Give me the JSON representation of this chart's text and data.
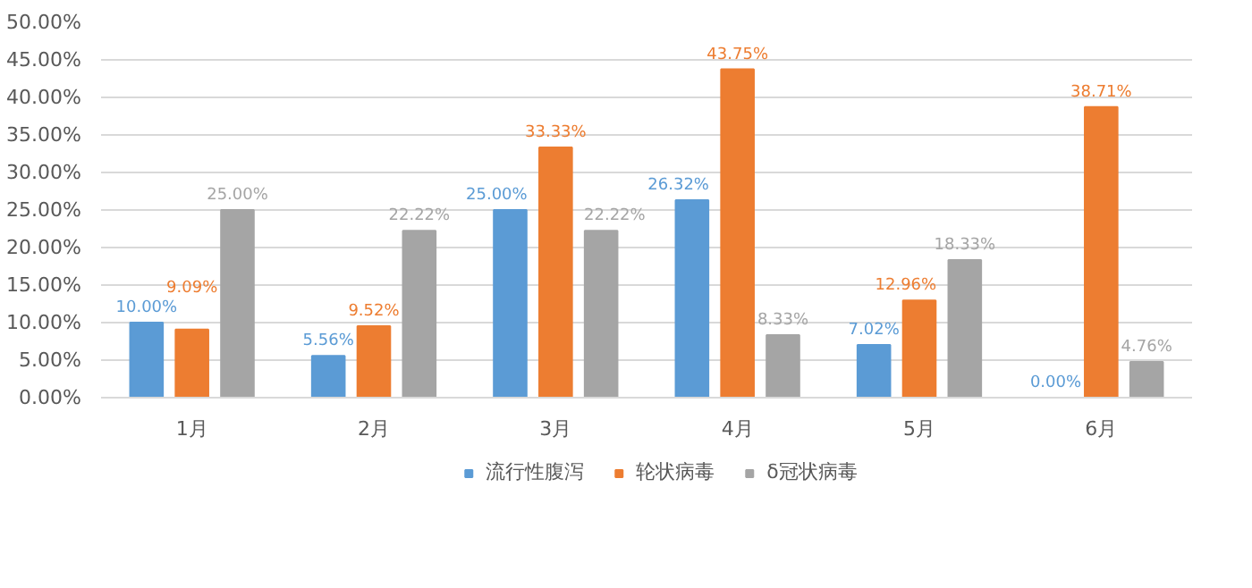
{
  "chart_data": {
    "type": "bar",
    "categories": [
      "1月",
      "2月",
      "3月",
      "4月",
      "5月",
      "6月"
    ],
    "series": [
      {
        "name": "流行性腹泻",
        "color": "#5b9bd5",
        "values": [
          10.0,
          5.56,
          25.0,
          26.32,
          7.02,
          0.0
        ],
        "value_labels": [
          "10.00%",
          "5.56%",
          "25.00%",
          "26.32%",
          "7.02%",
          "0.00%"
        ]
      },
      {
        "name": "轮状病毒",
        "color": "#ed7d31",
        "values": [
          9.09,
          9.52,
          33.33,
          43.75,
          12.96,
          38.71
        ],
        "value_labels": [
          "9.09%",
          "9.52%",
          "33.33%",
          "43.75%",
          "12.96%",
          "38.71%"
        ]
      },
      {
        "name": "δ冠状病毒",
        "color": "#a5a5a5",
        "values": [
          25.0,
          22.22,
          22.22,
          8.33,
          18.33,
          4.76
        ],
        "value_labels": [
          "25.00%",
          "22.22%",
          "22.22%",
          "8.33%",
          "18.33%",
          "4.76%"
        ]
      }
    ],
    "ylim": [
      0,
      50
    ],
    "yticks": [
      {
        "value": 0,
        "label": "0.00%"
      },
      {
        "value": 5,
        "label": "5.00%"
      },
      {
        "value": 10,
        "label": "10.00%"
      },
      {
        "value": 15,
        "label": "15.00%"
      },
      {
        "value": 20,
        "label": "20.00%"
      },
      {
        "value": 25,
        "label": "25.00%"
      },
      {
        "value": 30,
        "label": "30.00%"
      },
      {
        "value": 35,
        "label": "35.00%"
      },
      {
        "value": 40,
        "label": "40.00%"
      },
      {
        "value": 45,
        "label": "45.00%"
      },
      {
        "value": 50,
        "label": "50.00%"
      }
    ],
    "grid": "y",
    "legend": "bottom"
  }
}
